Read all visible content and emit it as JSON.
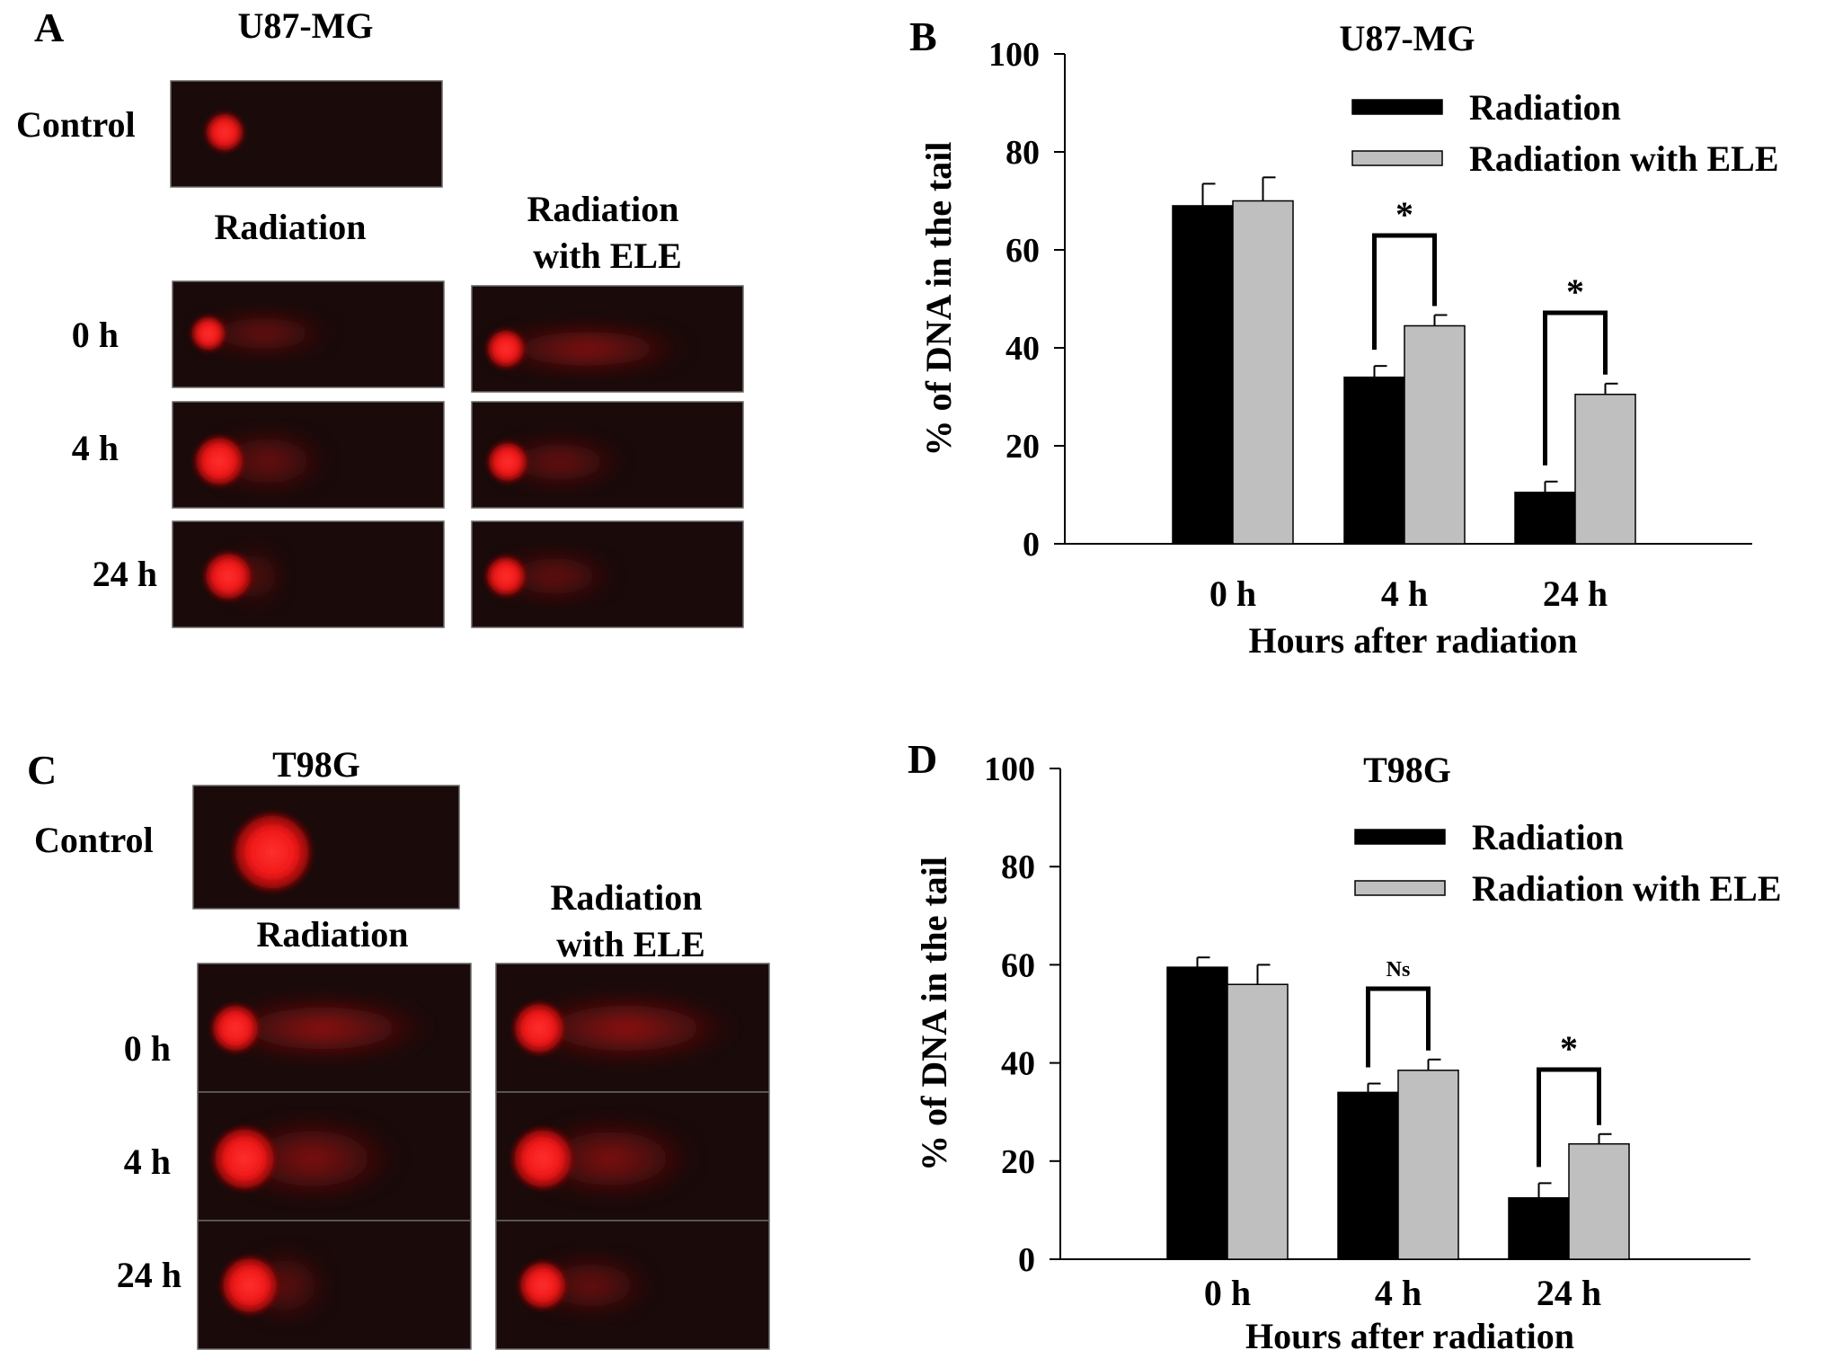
{
  "panels": {
    "A": {
      "letter": "A",
      "cell_line": "U87-MG",
      "control_label": "Control",
      "column_labels": [
        "Radiation",
        "Radiation\nwith ELE"
      ],
      "row_labels": [
        "0 h",
        "4 h",
        "24 h"
      ]
    },
    "C": {
      "letter": "C",
      "cell_line": "T98G",
      "control_label": "Control",
      "column_labels": [
        "Radiation",
        "Radiation\nwith ELE"
      ],
      "row_labels": [
        "0 h",
        "4 h",
        "24 h"
      ]
    }
  },
  "chart_data": [
    {
      "panel": "B",
      "type": "bar",
      "title": "U87-MG",
      "xlabel": "Hours after radiation",
      "ylabel": "% of DNA in the tail",
      "categories": [
        "0 h",
        "4 h",
        "24 h"
      ],
      "ylim": [
        0,
        100
      ],
      "yticks": [
        0,
        20,
        40,
        60,
        80,
        100
      ],
      "series": [
        {
          "name": "Radiation",
          "color": "#000000",
          "values": [
            69,
            34,
            10.5
          ],
          "errors": [
            4.5,
            2.3,
            2.2
          ]
        },
        {
          "name": "Radiation with ELE",
          "color": "#bfbfbf",
          "values": [
            70,
            44.5,
            30.5
          ],
          "errors": [
            4.8,
            2.2,
            2.2
          ]
        }
      ],
      "annotations": [
        {
          "category": "4 h",
          "label": "*"
        },
        {
          "category": "24 h",
          "label": "*"
        }
      ],
      "legend_position": "top-right",
      "grid": false
    },
    {
      "panel": "D",
      "type": "bar",
      "title": "T98G",
      "xlabel": "Hours after radiation",
      "ylabel": "% of DNA in the tail",
      "categories": [
        "0 h",
        "4 h",
        "24 h"
      ],
      "ylim": [
        0,
        100
      ],
      "yticks": [
        0,
        20,
        40,
        60,
        80,
        100
      ],
      "series": [
        {
          "name": "Radiation",
          "color": "#000000",
          "values": [
            59.5,
            34,
            12.5
          ],
          "errors": [
            2,
            1.8,
            3
          ]
        },
        {
          "name": "Radiation with ELE",
          "color": "#bfbfbf",
          "values": [
            56,
            38.5,
            23.5
          ],
          "errors": [
            4,
            2.2,
            2
          ]
        }
      ],
      "annotations": [
        {
          "category": "4 h",
          "label": "Ns"
        },
        {
          "category": "24 h",
          "label": "*"
        }
      ],
      "legend_position": "top-right",
      "grid": false
    }
  ]
}
